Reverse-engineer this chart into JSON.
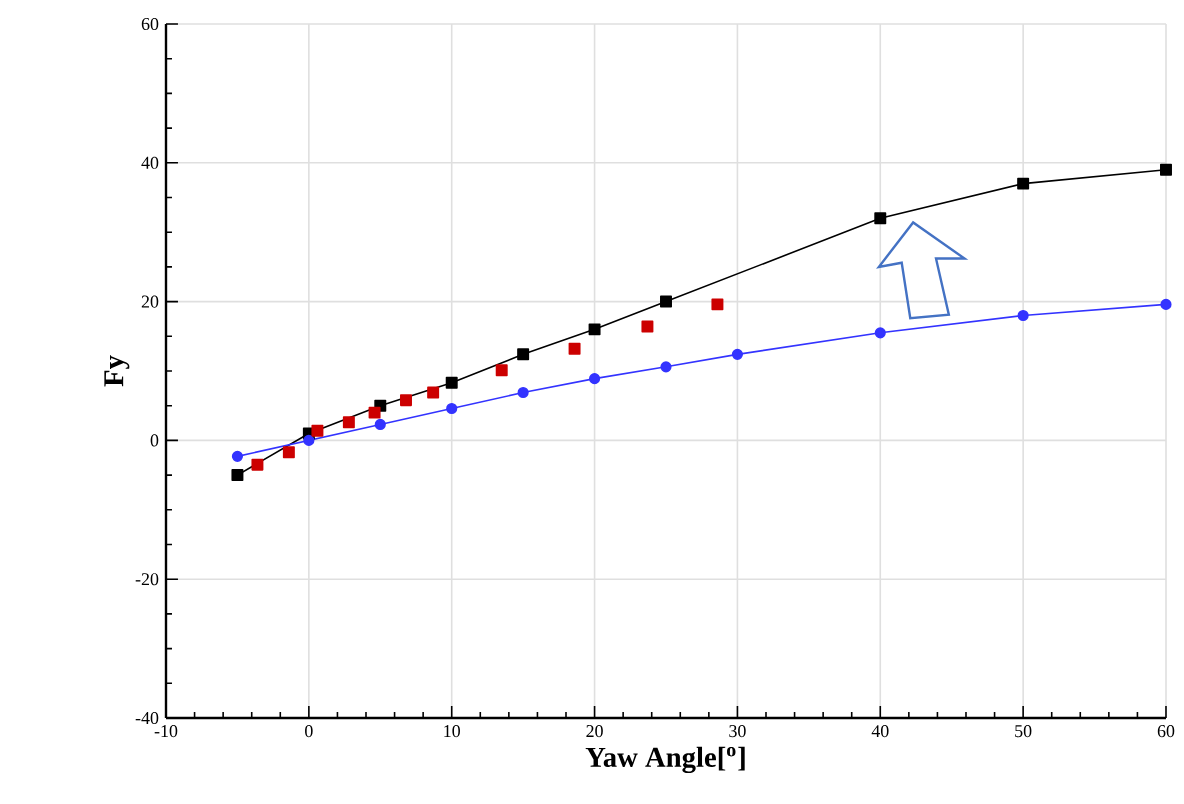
{
  "chart_data": {
    "type": "line",
    "xlabel": "Yaw Angle[$^{o}$]",
    "ylabel": "Fy",
    "xlim": [
      -10,
      60
    ],
    "ylim": [
      -40,
      60
    ],
    "xticks": [
      -10,
      0,
      10,
      20,
      30,
      40,
      50,
      60
    ],
    "yticks": [
      -40,
      -20,
      0,
      20,
      40,
      60
    ],
    "grid": true,
    "series": [
      {
        "color": "#000000",
        "marker": "square",
        "x": [
          -5,
          0,
          5,
          10,
          15,
          20,
          25,
          40,
          50,
          60
        ],
        "values": [
          -5,
          1,
          5,
          8.3,
          12.4,
          16,
          20,
          32,
          37,
          39
        ]
      },
      {
        "color": "#3333ff",
        "marker": "circle",
        "x": [
          -5,
          0,
          5,
          10,
          15,
          20,
          25,
          30,
          40,
          50,
          60
        ],
        "values": [
          -2.3,
          0,
          2.3,
          4.6,
          6.9,
          8.9,
          10.6,
          12.4,
          15.5,
          18,
          19.6
        ]
      },
      {
        "type": "scatter",
        "color": "#cc0000",
        "marker": "square",
        "x": [
          -3.6,
          -1.4,
          0.6,
          2.8,
          4.6,
          6.8,
          8.7,
          13.5,
          18.6,
          23.7,
          28.6
        ],
        "values": [
          -3.5,
          -1.7,
          1.4,
          2.6,
          4,
          5.8,
          6.9,
          10.1,
          13.2,
          16.4,
          19.6
        ]
      }
    ]
  }
}
